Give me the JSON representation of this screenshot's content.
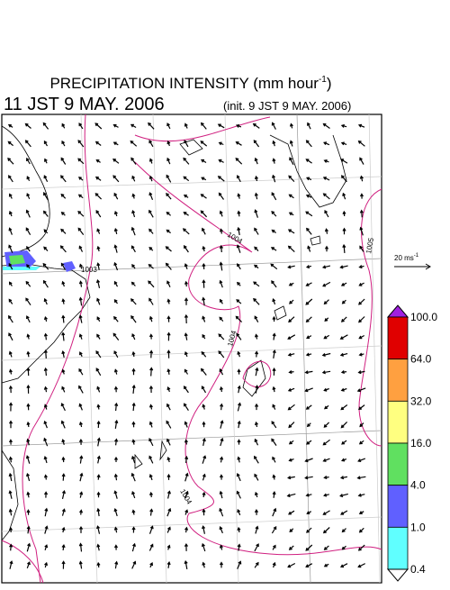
{
  "title": {
    "text": "PRECIPITATION INTENSITY (mm hour",
    "superscript": "-1",
    "close": ")"
  },
  "valid_time": "11 JST 9 MAY. 2006",
  "init_time": "(init. 9 JST 9 MAY. 2006)",
  "contour_labels": [
    "1003",
    "1004",
    "1004",
    "1005",
    "1004"
  ],
  "vector_reference": {
    "text": "20 ms",
    "superscript": "-1"
  },
  "colorbar": {
    "labels": [
      "100.0",
      "64.0",
      "32.0",
      "16.0",
      "4.0",
      "1.0",
      "0.4"
    ],
    "colors": [
      "#e00000",
      "#ffa040",
      "#ffff80",
      "#60e060",
      "#6060ff",
      "#60ffff"
    ],
    "over_color": "#a020e0",
    "under_color": "#ffffff"
  }
}
